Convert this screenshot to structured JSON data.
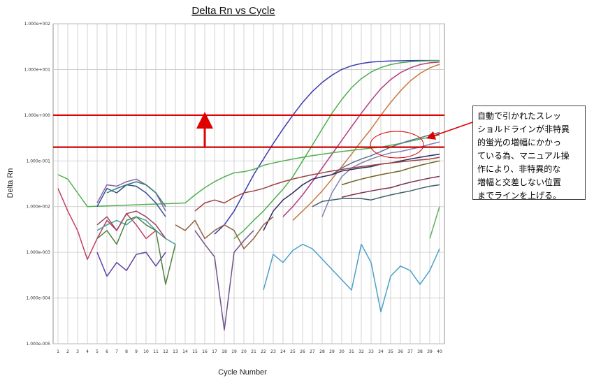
{
  "chart_data": {
    "type": "line",
    "title": "Delta Rn vs Cycle",
    "xlabel": "Cycle Number",
    "ylabel": "Delta Rn",
    "yscale": "log",
    "xlim": [
      1,
      40
    ],
    "ylim": [
      1e-05,
      100
    ],
    "grid": true,
    "y_tick_labels": [
      "1.000e+002",
      "1.000e+001",
      "1.000e+000",
      "1.000e-001",
      "1.000e-002",
      "1.000e-003",
      "1.000e-004",
      "1.000e-005"
    ],
    "y_tick_values": [
      100,
      10,
      1,
      0.1,
      0.01,
      0.001,
      0.0001,
      1e-05
    ],
    "x_ticks": [
      1,
      2,
      3,
      4,
      5,
      6,
      7,
      8,
      9,
      10,
      11,
      12,
      13,
      14,
      15,
      16,
      17,
      18,
      19,
      20,
      21,
      22,
      23,
      24,
      25,
      26,
      27,
      28,
      29,
      30,
      31,
      32,
      33,
      34,
      35,
      36,
      37,
      38,
      39,
      40
    ],
    "thresholds": [
      {
        "label": "threshold-manual",
        "value": 1.0,
        "color": "#e00000"
      },
      {
        "label": "threshold-auto",
        "value": 0.2,
        "color": "#cc0000"
      }
    ],
    "series": [
      {
        "color": "#3a3ab0",
        "x": [
          17,
          18,
          19,
          20,
          21,
          22,
          23,
          24,
          25,
          26,
          27,
          28,
          29,
          30,
          31,
          32,
          33,
          34,
          35,
          36,
          37,
          38,
          39,
          40
        ],
        "y": [
          0.0025,
          0.004,
          0.008,
          0.02,
          0.05,
          0.11,
          0.24,
          0.5,
          1.0,
          1.9,
          3.3,
          5.2,
          7.5,
          10,
          12,
          13.5,
          14.5,
          15,
          15.3,
          15.5,
          15.6,
          15.7,
          15.7,
          15.7
        ]
      },
      {
        "color": "#4ab04a",
        "x": [
          19,
          20,
          21,
          22,
          23,
          24,
          25,
          26,
          27,
          28,
          29,
          30,
          31,
          32,
          33,
          34,
          35,
          36,
          37,
          38,
          39,
          40
        ],
        "y": [
          0.002,
          0.003,
          0.005,
          0.008,
          0.014,
          0.024,
          0.045,
          0.1,
          0.22,
          0.5,
          1.1,
          2.2,
          4,
          6.3,
          8.8,
          11,
          12.8,
          14,
          14.8,
          15.2,
          15.5,
          15.6
        ]
      },
      {
        "color": "#b03a80",
        "x": [
          24,
          25,
          26,
          27,
          28,
          29,
          30,
          31,
          32,
          33,
          34,
          35,
          36,
          37,
          38,
          39,
          40
        ],
        "y": [
          0.006,
          0.01,
          0.018,
          0.035,
          0.07,
          0.14,
          0.28,
          0.56,
          1.1,
          2.1,
          3.8,
          6,
          8.5,
          10.8,
          12.8,
          14,
          14.6
        ]
      },
      {
        "color": "#c87840",
        "x": [
          25,
          26,
          27,
          28,
          29,
          30,
          31,
          32,
          33,
          34,
          35,
          36,
          37,
          38,
          39,
          40
        ],
        "y": [
          0.005,
          0.008,
          0.013,
          0.022,
          0.04,
          0.075,
          0.14,
          0.27,
          0.5,
          1.0,
          1.9,
          3.4,
          5.6,
          8.2,
          10.8,
          13
        ]
      },
      {
        "color": "#50b050",
        "x": [
          1,
          2,
          3,
          4,
          14,
          15,
          16,
          17,
          18,
          19,
          20,
          21,
          22,
          23,
          24,
          25,
          26,
          27,
          28,
          29,
          30,
          31,
          32,
          33,
          34,
          35,
          36,
          37,
          38,
          39,
          40
        ],
        "y": [
          0.05,
          0.04,
          0.02,
          0.01,
          0.012,
          0.018,
          0.026,
          0.035,
          0.045,
          0.055,
          0.058,
          0.065,
          0.08,
          0.09,
          0.1,
          0.11,
          0.12,
          0.13,
          0.14,
          0.15,
          0.16,
          0.17,
          0.18,
          0.19,
          0.2,
          0.22,
          0.24,
          0.27,
          0.3,
          0.33,
          0.37
        ]
      },
      {
        "color": "#607090",
        "x": [
          29,
          30,
          31,
          32,
          33,
          34,
          35,
          36,
          37,
          38,
          39,
          40
        ],
        "y": [
          0.05,
          0.07,
          0.09,
          0.11,
          0.13,
          0.16,
          0.2,
          0.24,
          0.28,
          0.32,
          0.37,
          0.42
        ]
      },
      {
        "color": "#8080b0",
        "x": [
          28,
          29,
          30,
          31,
          32,
          33,
          34,
          35,
          36,
          37,
          38,
          39,
          40
        ],
        "y": [
          0.006,
          0.02,
          0.045,
          0.07,
          0.09,
          0.11,
          0.13,
          0.15,
          0.16,
          0.18,
          0.2,
          0.23,
          0.26
        ]
      },
      {
        "color": "#2a2a60",
        "x": [
          22,
          23,
          24,
          25,
          26,
          27,
          28,
          29,
          30,
          31,
          32,
          33,
          34,
          35,
          36,
          37,
          38,
          39,
          40
        ],
        "y": [
          0.003,
          0.008,
          0.014,
          0.02,
          0.03,
          0.04,
          0.045,
          0.05,
          0.06,
          0.065,
          0.07,
          0.075,
          0.085,
          0.09,
          0.1,
          0.11,
          0.12,
          0.13,
          0.14
        ]
      },
      {
        "color": "#a04040",
        "x": [
          15,
          16,
          17,
          18,
          19,
          20,
          21,
          22,
          23,
          24,
          25,
          26,
          27,
          28,
          29,
          30,
          31,
          32,
          33,
          34,
          35,
          36,
          37,
          38,
          39,
          40
        ],
        "y": [
          0.008,
          0.012,
          0.014,
          0.012,
          0.016,
          0.02,
          0.022,
          0.025,
          0.03,
          0.035,
          0.04,
          0.045,
          0.05,
          0.055,
          0.06,
          0.065,
          0.07,
          0.075,
          0.08,
          0.085,
          0.09,
          0.095,
          0.1,
          0.105,
          0.11,
          0.12
        ]
      },
      {
        "color": "#706020",
        "x": [
          30,
          31,
          32,
          33,
          34,
          35,
          36,
          37,
          38,
          39,
          40
        ],
        "y": [
          0.03,
          0.035,
          0.04,
          0.045,
          0.05,
          0.055,
          0.06,
          0.07,
          0.08,
          0.09,
          0.1
        ]
      },
      {
        "color": "#803050",
        "x": [
          30,
          31,
          32,
          33,
          34,
          35,
          36,
          37,
          38,
          39,
          40
        ],
        "y": [
          0.016,
          0.018,
          0.02,
          0.022,
          0.024,
          0.026,
          0.03,
          0.034,
          0.038,
          0.042,
          0.046
        ]
      },
      {
        "color": "#406070",
        "x": [
          27,
          28,
          29,
          30,
          31,
          32,
          33,
          34,
          35,
          36,
          37,
          38,
          39,
          40
        ],
        "y": [
          0.01,
          0.013,
          0.014,
          0.015,
          0.015,
          0.015,
          0.014,
          0.016,
          0.018,
          0.02,
          0.022,
          0.025,
          0.028,
          0.03
        ]
      },
      {
        "color": "#4aa0c8",
        "x": [
          22,
          23,
          24,
          25,
          26,
          27,
          31,
          32,
          33,
          34,
          35,
          36,
          37,
          38,
          39,
          40
        ],
        "y": [
          0.00015,
          0.0009,
          0.0006,
          0.0011,
          0.0015,
          0.0012,
          0.00015,
          0.0015,
          0.0006,
          5e-05,
          0.0003,
          0.0005,
          0.0004,
          0.0002,
          0.0004,
          0.0012
        ]
      },
      {
        "color": "#60b060",
        "x": [
          39,
          40
        ],
        "y": [
          0.002,
          0.01
        ]
      },
      {
        "color": "#c04060",
        "x": [
          1,
          2,
          3,
          4,
          5,
          6,
          7,
          8,
          9,
          10,
          11,
          12
        ],
        "y": [
          0.025,
          0.008,
          0.003,
          0.0007,
          0.002,
          0.005,
          0.003,
          0.007,
          0.004,
          0.002,
          0.003,
          0.002
        ]
      },
      {
        "color": "#6040a0",
        "x": [
          5,
          6,
          7,
          8,
          9,
          10,
          11,
          12
        ],
        "y": [
          0.001,
          0.0003,
          0.0006,
          0.0004,
          0.0009,
          0.001,
          0.0005,
          0.001
        ]
      },
      {
        "color": "#40a0a0",
        "x": [
          5,
          6,
          7,
          8,
          9,
          10,
          11,
          12,
          13
        ],
        "y": [
          0.003,
          0.004,
          0.005,
          0.004,
          0.006,
          0.005,
          0.003,
          0.002,
          0.0015
        ]
      },
      {
        "color": "#a04060",
        "x": [
          5,
          6,
          7,
          8,
          9,
          10,
          11,
          12
        ],
        "y": [
          0.004,
          0.006,
          0.003,
          0.007,
          0.008,
          0.006,
          0.004,
          0.002
        ]
      },
      {
        "color": "#305090",
        "x": [
          5,
          6,
          7,
          8,
          9,
          10,
          11,
          12
        ],
        "y": [
          0.01,
          0.025,
          0.02,
          0.03,
          0.028,
          0.02,
          0.012,
          0.006
        ]
      },
      {
        "color": "#508040",
        "x": [
          5,
          6,
          7,
          8,
          9,
          10,
          11,
          12,
          13
        ],
        "y": [
          0.002,
          0.003,
          0.0015,
          0.005,
          0.006,
          0.004,
          0.003,
          0.0002,
          0.0015
        ]
      },
      {
        "color": "#8a60b0",
        "x": [
          5,
          6,
          7,
          8,
          9,
          10,
          11,
          12
        ],
        "y": [
          0.012,
          0.03,
          0.028,
          0.035,
          0.04,
          0.03,
          0.02,
          0.008
        ]
      },
      {
        "color": "#308070",
        "x": [
          6,
          7,
          8,
          9,
          10,
          11,
          12
        ],
        "y": [
          0.02,
          0.025,
          0.03,
          0.035,
          0.03,
          0.02,
          0.01
        ]
      },
      {
        "color": "#705090",
        "x": [
          15,
          16,
          17,
          18,
          19,
          20,
          21
        ],
        "y": [
          0.003,
          0.0015,
          0.0008,
          2e-05,
          0.001,
          0.0018,
          0.003
        ]
      },
      {
        "color": "#906040",
        "x": [
          13,
          14,
          15,
          16,
          17,
          18,
          19,
          20,
          21,
          22,
          23
        ],
        "y": [
          0.004,
          0.003,
          0.005,
          0.002,
          0.003,
          0.004,
          0.003,
          0.0012,
          0.002,
          0.004,
          0.006
        ]
      }
    ]
  },
  "annotation": {
    "lines": [
      "自動で引かれたスレッ",
      "ショルドラインが非特異",
      "的蛍光の増幅にかかっ",
      "ている為、マニュアル操",
      "作により、非特異的な",
      "増幅と交差しない位置",
      "までラインを上げる。"
    ]
  },
  "colors": {
    "threshold": "#e00000",
    "grid": "#c8c8c8",
    "frame": "#909090"
  }
}
